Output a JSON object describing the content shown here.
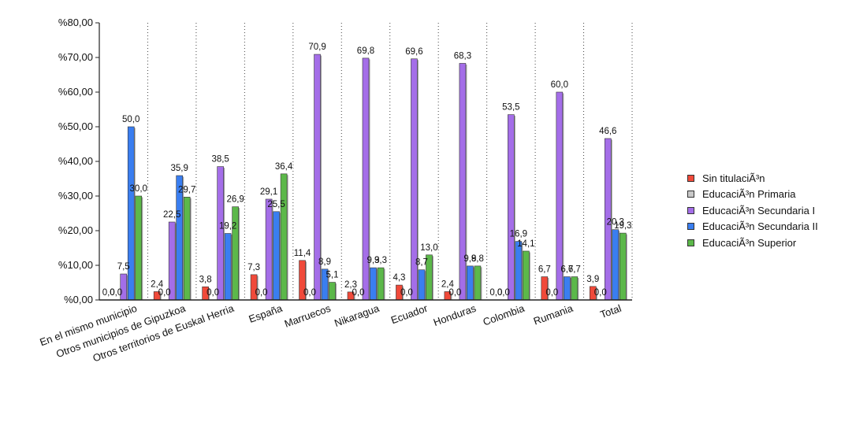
{
  "chart_data": {
    "type": "bar",
    "title": "",
    "xlabel": "",
    "ylabel": "",
    "ylim": [
      0,
      80
    ],
    "grid": "vertical-dotted",
    "legend_position": "right",
    "yticks": [
      "%0,00",
      "%10,00",
      "%20,00",
      "%30,00",
      "%40,00",
      "%50,00",
      "%60,00",
      "%70,00",
      "%80,00"
    ],
    "categories": [
      "En el mismo municipio",
      "Otros municipios de Gipuzkoa",
      "Otros territorios de Euskal Herria",
      "España",
      "Marruecos",
      "Nikaragua",
      "Ecuador",
      "Honduras",
      "Colombia",
      "Rumania",
      "Total"
    ],
    "series": [
      {
        "name": "Sin titulaciÃ³n",
        "color": "#f04a3a",
        "values": [
          0.0,
          2.4,
          3.8,
          7.3,
          11.4,
          2.3,
          4.3,
          2.4,
          0.0,
          6.7,
          3.9
        ]
      },
      {
        "name": "EducaciÃ³n Primaria",
        "color": "#c8c8c8",
        "values": [
          0.0,
          0.0,
          0.0,
          0.0,
          0.0,
          0.0,
          0.0,
          0.0,
          0.0,
          0.0,
          0.0
        ]
      },
      {
        "name": "EducaciÃ³n Secundaria I",
        "color": "#a46ee8",
        "values": [
          7.5,
          22.5,
          38.5,
          29.1,
          70.9,
          69.8,
          69.6,
          68.3,
          53.5,
          60.0,
          46.6
        ]
      },
      {
        "name": "EducaciÃ³n Secundaria II",
        "color": "#3a7ef0",
        "values": [
          50.0,
          35.9,
          19.2,
          25.5,
          8.9,
          9.3,
          8.7,
          9.8,
          16.9,
          6.7,
          20.3
        ]
      },
      {
        "name": "EducaciÃ³n Superior",
        "color": "#5cb84a",
        "values": [
          30.0,
          29.7,
          26.9,
          36.4,
          5.1,
          9.3,
          13.0,
          9.8,
          14.1,
          6.7,
          19.3
        ]
      }
    ]
  }
}
